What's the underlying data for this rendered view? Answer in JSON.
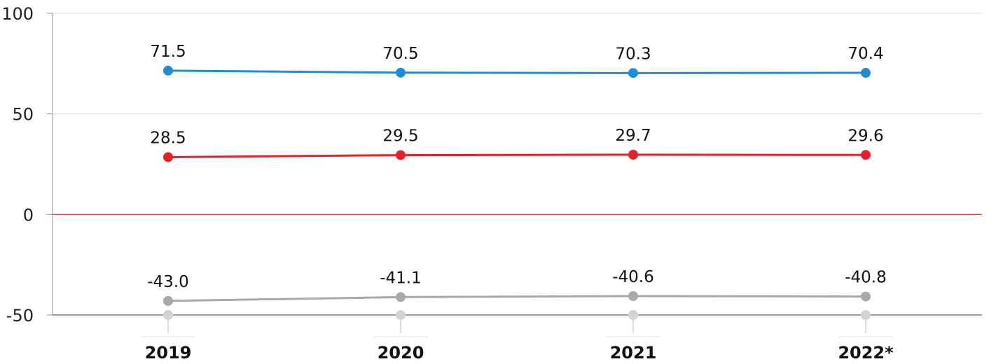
{
  "chart_data": {
    "type": "line",
    "categories": [
      "2019",
      "2020",
      "2021",
      "2022*"
    ],
    "ylim": [
      -50,
      100
    ],
    "yticks": [
      100,
      50,
      0,
      -50
    ],
    "grid": true,
    "legend": "none",
    "title": "",
    "xlabel": "",
    "ylabel": "",
    "series": [
      {
        "values": [
          71.5,
          70.5,
          70.3,
          70.4
        ],
        "labels": [
          "71.5",
          "70.5",
          "70.3",
          "70.4"
        ],
        "color": "#1f8dd6"
      },
      {
        "values": [
          28.5,
          29.5,
          29.7,
          29.6
        ],
        "labels": [
          "28.5",
          "29.5",
          "29.7",
          "29.6"
        ],
        "color": "#e42127"
      },
      {
        "values": [
          -43.0,
          -41.1,
          -40.6,
          -40.8
        ],
        "labels": [
          "-43.0",
          "-41.1",
          "-40.6",
          "-40.8"
        ],
        "color": "#a8a8a8"
      }
    ],
    "baseline_markers": [
      -50,
      -50,
      -50,
      -50
    ],
    "colors": {
      "zero_line": "#c0392b",
      "gridline": "#dddddd",
      "axis": "#999999",
      "baseline_marker": "#d3d3d3"
    }
  }
}
